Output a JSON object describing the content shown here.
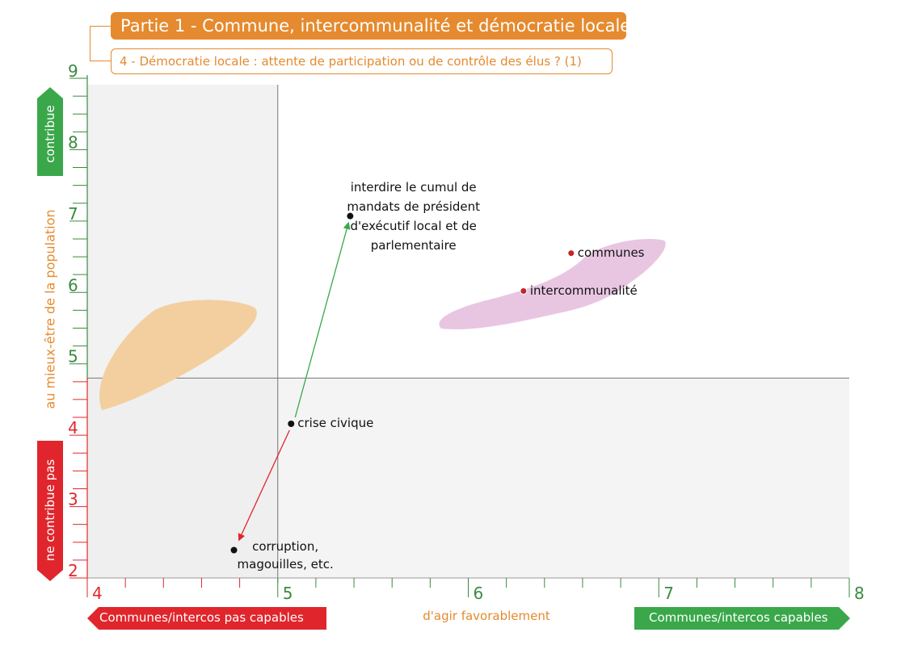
{
  "header": {
    "title": "Partie 1 - Commune, intercommunalité et démocratie locale",
    "subtitle": "4 - Démocratie locale : attente de participation ou de contrôle des élus ? (1)"
  },
  "axes": {
    "y_top_label": "contribue",
    "y_middle_label": "au mieux-être de la population",
    "y_bottom_label": "ne contribue pas",
    "x_left_label": "Communes/intercos pas capables",
    "x_middle_label": "d'agir favorablement",
    "x_right_label": "Communes/intercos capables"
  },
  "colors": {
    "orange": "#e58a2e",
    "green": "#3aa84a",
    "red": "#e0262c",
    "axis_green": "#3a8a3e",
    "orange_blob": "#f3cfa0",
    "pink_blob": "#e8c6e2",
    "point_red": "#c0262c"
  },
  "chart_data": {
    "type": "scatter",
    "xlim": [
      4,
      8
    ],
    "ylim": [
      2,
      9
    ],
    "x_ticks": [
      4,
      5,
      6,
      7,
      8
    ],
    "y_ticks": [
      2,
      3,
      4,
      5,
      6,
      7,
      8,
      9
    ],
    "x_tick_labels": [
      "4",
      "5",
      "6",
      "7",
      "8"
    ],
    "y_tick_labels": [
      "2",
      "3",
      "4",
      "5",
      "6",
      "7",
      "8",
      "9"
    ],
    "quadrant_lines": {
      "x": 5,
      "y": 4.8
    },
    "points": [
      {
        "label": "crise civique",
        "x": 5.07,
        "y": 4.16,
        "color": "#111111"
      },
      {
        "label": "interdire le cumul de mandats de président d'exécutif local et de parlementaire",
        "lines": [
          "interdire le cumul de",
          "mandats de président",
          "d'exécutif local et de",
          "parlementaire"
        ],
        "x": 5.38,
        "y": 7.07,
        "color": "#111111"
      },
      {
        "label": "corruption, magouilles, etc.",
        "lines": [
          "corruption,",
          "magouilles, etc."
        ],
        "x": 4.77,
        "y": 2.39,
        "color": "#111111"
      },
      {
        "label": "communes",
        "x": 6.54,
        "y": 6.55,
        "color": "#c0262c"
      },
      {
        "label": "intercommunalité",
        "x": 6.29,
        "y": 6.02,
        "color": "#c0262c"
      }
    ],
    "arrows": [
      {
        "from": "crise civique",
        "to": "interdire le cumul",
        "color": "#3aa84a"
      },
      {
        "from": "crise civique",
        "to": "corruption",
        "color": "#e0262c"
      }
    ]
  }
}
